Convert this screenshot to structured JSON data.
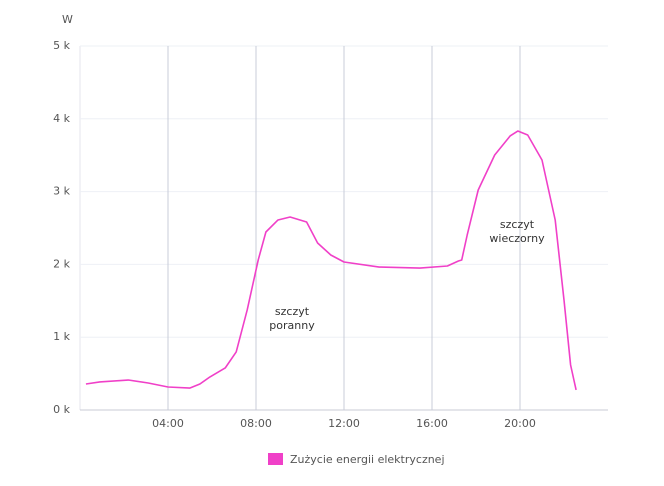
{
  "chart_data": {
    "type": "line",
    "y_label": "W",
    "x": [
      0.27,
      0.9,
      2.2,
      3.1,
      4,
      5,
      5.45,
      5.9,
      6.6,
      7.1,
      7.6,
      8.1,
      8.45,
      9,
      9.55,
      10.3,
      10.8,
      11.4,
      12,
      13.6,
      15.45,
      16.7,
      17.2,
      17.35,
      17.6,
      18.1,
      18.85,
      19.55,
      19.9,
      20.35,
      21,
      21.6,
      22,
      22.3,
      22.55
    ],
    "series": [
      {
        "name": "Zużycie energii elektrycznej",
        "color": "#f040c8",
        "values": [
          357,
          385,
          412,
          371,
          316,
          302,
          357,
          453,
          577,
          797,
          1374,
          2060,
          2445,
          2610,
          2651,
          2582,
          2294,
          2129,
          2033,
          1964,
          1950,
          1978,
          2047,
          2060,
          2404,
          3022,
          3503,
          3764,
          3832,
          3777,
          3434,
          2610,
          1511,
          618,
          275
        ]
      }
    ],
    "xlim": [
      0,
      24
    ],
    "xticks": [
      {
        "value": 4,
        "label": "04:00"
      },
      {
        "value": 8,
        "label": "08:00"
      },
      {
        "value": 12,
        "label": "12:00"
      },
      {
        "value": 16,
        "label": "16:00"
      },
      {
        "value": 20,
        "label": "20:00"
      }
    ],
    "ylim": [
      0,
      5000
    ],
    "yticks": [
      {
        "value": 0,
        "label": "0 k"
      },
      {
        "value": 1000,
        "label": "1 k"
      },
      {
        "value": 2000,
        "label": "2 k"
      },
      {
        "value": 3000,
        "label": "3 k"
      },
      {
        "value": 4000,
        "label": "4 k"
      },
      {
        "value": 5000,
        "label": "5 k"
      }
    ],
    "grid": true,
    "annotations": [
      [
        "szczyt",
        "poranny"
      ],
      [
        "szczyt",
        "wieczorny"
      ]
    ]
  }
}
